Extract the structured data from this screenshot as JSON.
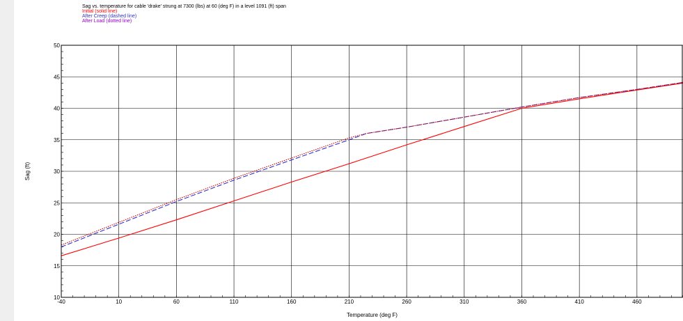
{
  "chart_data": {
    "type": "line",
    "title": "Sag vs. temperature for cable 'drake' strung at 7300 (lbs) at 60 (deg F) in a level 1091 (ft) span",
    "xlabel": "Temperature (deg F)",
    "ylabel": "Sag (ft)",
    "xlim": [
      -40,
      500
    ],
    "ylim": [
      10,
      50
    ],
    "xticks": [
      -40,
      10,
      60,
      110,
      160,
      210,
      260,
      310,
      360,
      410,
      460
    ],
    "yticks": [
      10,
      15,
      20,
      25,
      30,
      35,
      40,
      45,
      50
    ],
    "grid": true,
    "series": [
      {
        "name": "Initial (solid line)",
        "color": "#ff0000",
        "style": "solid",
        "x": [
          -40,
          10,
          60,
          110,
          160,
          210,
          260,
          310,
          360,
          410,
          460,
          500
        ],
        "y": [
          16.6,
          19.4,
          22.3,
          25.3,
          28.3,
          31.2,
          34.2,
          37.1,
          40.0,
          41.5,
          42.9,
          44.0
        ]
      },
      {
        "name": "After Creep (dashed line)",
        "color": "#3333cc",
        "style": "dashed",
        "x": [
          -40,
          10,
          60,
          110,
          160,
          210,
          225,
          260,
          310,
          360,
          410,
          460,
          500
        ],
        "y": [
          18.0,
          21.6,
          25.2,
          28.6,
          31.8,
          35.0,
          36.0,
          37.0,
          38.6,
          40.2,
          41.7,
          43.0,
          44.1
        ]
      },
      {
        "name": "After Load (dotted line)",
        "color": "#cc0000",
        "style": "dotted",
        "x": [
          -40,
          10,
          60,
          110,
          160,
          210,
          225,
          260,
          310,
          360,
          410,
          460,
          500
        ],
        "y": [
          18.3,
          21.9,
          25.5,
          28.9,
          32.1,
          35.3,
          36.0,
          37.0,
          38.6,
          40.2,
          41.7,
          43.0,
          44.1
        ]
      }
    ]
  }
}
